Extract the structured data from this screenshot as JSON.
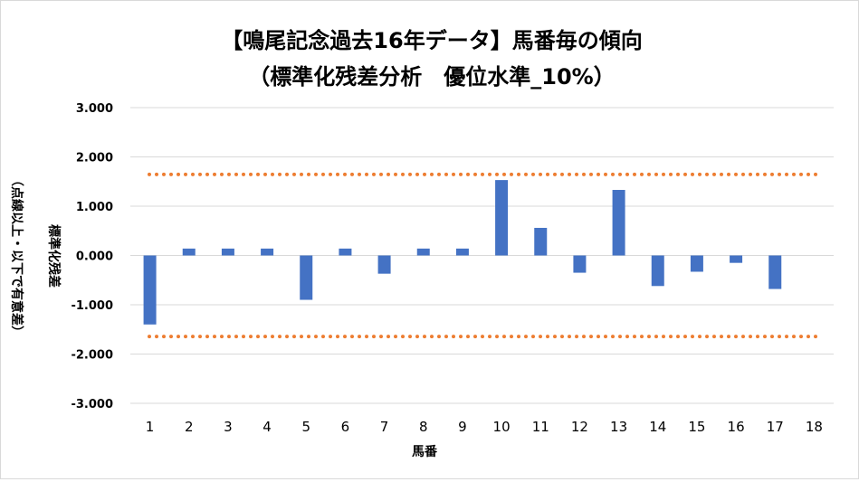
{
  "chart_data": {
    "type": "bar",
    "title_line1": "【鳴尾記念過去16年データ】馬番毎の傾向",
    "title_line2": "（標準化残差分析　優位水準_10%）",
    "xlabel": "馬番",
    "ylabel_main": "標準化残差",
    "ylabel_sub": "（点線以上・以下で有意差）",
    "categories": [
      "1",
      "2",
      "3",
      "4",
      "5",
      "6",
      "7",
      "8",
      "9",
      "10",
      "11",
      "12",
      "13",
      "14",
      "15",
      "16",
      "17",
      "18"
    ],
    "values": [
      -1.4,
      0.14,
      0.14,
      0.14,
      -0.9,
      0.14,
      -0.37,
      0.14,
      0.14,
      1.53,
      0.56,
      -0.35,
      1.33,
      -0.62,
      -0.33,
      -0.15,
      -0.68,
      0
    ],
    "ylim": [
      -3,
      3
    ],
    "yticks": [
      3,
      2,
      1,
      0,
      -1,
      -2,
      -3
    ],
    "ytick_labels": [
      "3.000",
      "2.000",
      "1.000",
      "0.000",
      "-1.000",
      "-2.000",
      "-3.000"
    ],
    "threshold_upper": 1.645,
    "threshold_lower": -1.645,
    "grid": true,
    "legend": "none",
    "bar_color": "#4472c4",
    "threshold_color": "#ed7d31",
    "grid_color": "#d9d9d9"
  }
}
